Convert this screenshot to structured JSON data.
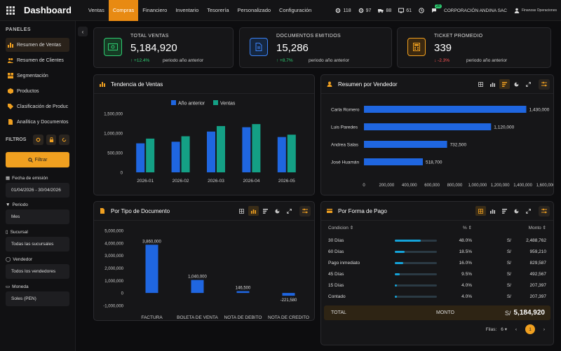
{
  "header": {
    "title": "Dashboard",
    "nav": [
      "Ventas",
      "Compras",
      "Financiero",
      "Inventario",
      "Tesorería",
      "Personalizado",
      "Configuración"
    ],
    "active_nav": 1,
    "stats": [
      {
        "icon": "gear-icon",
        "value": "118"
      },
      {
        "icon": "gear-icon",
        "value": "97"
      },
      {
        "icon": "truck-icon",
        "value": "88"
      },
      {
        "icon": "display-icon",
        "value": "61"
      },
      {
        "icon": "clock-icon",
        "value": ""
      },
      {
        "icon": "chat-icon",
        "value": ""
      }
    ],
    "chat_badge": "20",
    "company": "CORPORACIÓN ANDINA SAC",
    "user": "Finanzas Operaciones"
  },
  "sidebar": {
    "panels_title": "PANELES",
    "items": [
      "Resumen de Ventas",
      "Resumen de Clientes",
      "Segmentación",
      "Productos",
      "Clasificación de Produc",
      "Analítica y Documentos"
    ],
    "filters_title": "FILTROS",
    "filter_button": "Filtrar",
    "fields": [
      {
        "label": "Fecha de emisión",
        "value": "01/04/2026 - 30/04/2026"
      },
      {
        "label": "Periodo",
        "value": "Mes"
      },
      {
        "label": "Sucursal",
        "value": "Todas las sucursales"
      },
      {
        "label": "Vendedor",
        "value": "Todos los vendedores"
      },
      {
        "label": "Moneda",
        "value": "Soles (PEN)"
      }
    ]
  },
  "kpis": [
    {
      "title": "TOTAL VENTAS",
      "value": "5,184,920",
      "delta": "↑ +12.4%",
      "trend": "up",
      "period": "periodo año anterior",
      "color": "#2ecc71"
    },
    {
      "title": "DOCUMENTOS EMITIDOS",
      "value": "15,286",
      "delta": "↑ +8.7%",
      "trend": "up",
      "period": "periodo año anterior",
      "color": "#3b82f6"
    },
    {
      "title": "TICKET PROMEDIO",
      "value": "339",
      "delta": "↓ -2.3%",
      "trend": "down",
      "period": "periodo año anterior",
      "color": "#f0a020"
    }
  ],
  "panels": {
    "tendencia": "Tendencia de Ventas",
    "vendedor": "Resumen por Vendedor",
    "documento": "Por Tipo de Documento",
    "pago": "Por Forma de Pago"
  },
  "colors": {
    "blue": "#1f66e0",
    "green": "#14a085",
    "orange": "#f0a020"
  },
  "chart_data": [
    {
      "type": "bar",
      "title": "Tendencia de Ventas",
      "categories": [
        "2026-01",
        "2026-02",
        "2026-03",
        "2026-04",
        "2026-05"
      ],
      "series": [
        {
          "name": "Año anterior",
          "values": [
            740000,
            780000,
            1040000,
            1150000,
            900000
          ]
        },
        {
          "name": "Ventas",
          "values": [
            860000,
            920000,
            1180000,
            1230000,
            960000
          ]
        }
      ],
      "yticks": [
        "1,500,000",
        "1,000,000",
        "500,000",
        "0"
      ],
      "ylim": [
        0,
        1500000
      ],
      "legend": "top"
    },
    {
      "type": "bar",
      "orientation": "horizontal",
      "title": "Resumen por Vendedor",
      "categories": [
        "Carla Romero",
        "Luis Paredes",
        "Andrea Salas",
        "José Huamán"
      ],
      "values": [
        1430000,
        1120000,
        732500,
        518700
      ],
      "labels": [
        "1,430,000",
        "1,120,000",
        "732,500",
        "518,700"
      ],
      "xticks": [
        "0",
        "200,000",
        "400,000",
        "600,000",
        "800,000",
        "1,000,000",
        "1,200,000",
        "1,400,000",
        "1,600,000"
      ],
      "xlim": [
        0,
        1600000
      ]
    },
    {
      "type": "bar",
      "title": "Por Tipo de Documento",
      "categories": [
        "FACTURA",
        "BOLETA DE VENTA",
        "NOTA DE DEBITO",
        "NOTA DE CREDITO"
      ],
      "values": [
        3860000,
        1040000,
        146500,
        -221580
      ],
      "labels": [
        "3,860,000",
        "1,040,000",
        "146,500",
        "-221,580"
      ],
      "yticks": [
        "5,000,000",
        "4,000,000",
        "3,000,000",
        "2,000,000",
        "1,000,000",
        "0",
        "-1,000,000"
      ],
      "ylim": [
        -1000000,
        5000000
      ]
    }
  ],
  "pago": {
    "head": {
      "condicion": "Condicion ⇕",
      "pct": "% ⇕",
      "monto": "Monto ⇕"
    },
    "rows": [
      {
        "name": "30 Días",
        "pct": 48.0,
        "pct_text": "48.0%",
        "s": "S/",
        "monto": "2,488,762"
      },
      {
        "name": "60 Días",
        "pct": 18.5,
        "pct_text": "18.5%",
        "s": "S/",
        "monto": "959,210"
      },
      {
        "name": "Pago inmediato",
        "pct": 16.0,
        "pct_text": "16.0%",
        "s": "S/",
        "monto": "829,587"
      },
      {
        "name": "45 Días",
        "pct": 9.5,
        "pct_text": "9.5%",
        "s": "S/",
        "monto": "492,567"
      },
      {
        "name": "15 Días",
        "pct": 4.0,
        "pct_text": "4.0%",
        "s": "S/",
        "monto": "207,397"
      },
      {
        "name": "Contado",
        "pct": 4.0,
        "pct_text": "4.0%",
        "s": "S/",
        "monto": "207,397"
      }
    ],
    "total_label": "TOTAL",
    "total_col": "MONTO",
    "total_s": "S/",
    "total_value": "5,184,920",
    "rows_label": "Filas:",
    "rows_value": "6",
    "page": "1"
  }
}
